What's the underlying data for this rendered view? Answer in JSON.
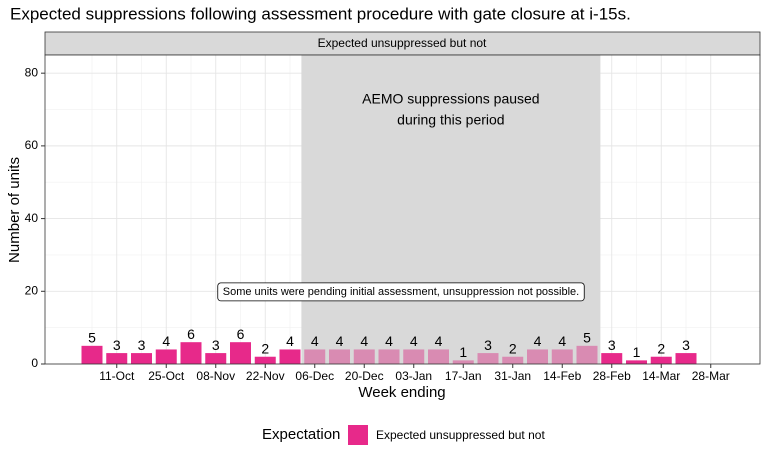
{
  "chart_data": {
    "type": "bar",
    "title": "Expected suppressions following assessment procedure with gate closure at i-15s.",
    "facet_label": "Expected unsuppressed but not",
    "x_label": "Week ending",
    "y_label": "Number of units",
    "categories": [
      null,
      "11-Oct",
      null,
      "25-Oct",
      null,
      "08-Nov",
      null,
      "22-Nov",
      null,
      "06-Dec",
      null,
      "20-Dec",
      null,
      "03-Jan",
      null,
      "17-Jan",
      null,
      "31-Jan",
      null,
      "14-Feb",
      null,
      "28-Feb",
      null,
      "14-Mar",
      null,
      "28-Mar"
    ],
    "series": [
      {
        "name": "Expected unsuppressed but not",
        "color": "#e7298a",
        "values": [
          5,
          3,
          3,
          4,
          6,
          3,
          6,
          2,
          4,
          4,
          4,
          4,
          4,
          4,
          4,
          1,
          3,
          2,
          4,
          4,
          5,
          3,
          1,
          2,
          3,
          null
        ]
      }
    ],
    "legend_title": "Expectation",
    "legend": "bottom",
    "ylim": [
      0,
      85
    ],
    "yticks": [
      0,
      20,
      40,
      60,
      80
    ],
    "grid": true,
    "shaded_period": {
      "start": 9,
      "end": 20,
      "color": "#d9d9d9",
      "bar_color": "#d98bb2",
      "text": [
        "AEMO suppressions paused",
        "during this period"
      ]
    },
    "annotation": "Some units were pending initial assessment, unsuppression not possible."
  }
}
